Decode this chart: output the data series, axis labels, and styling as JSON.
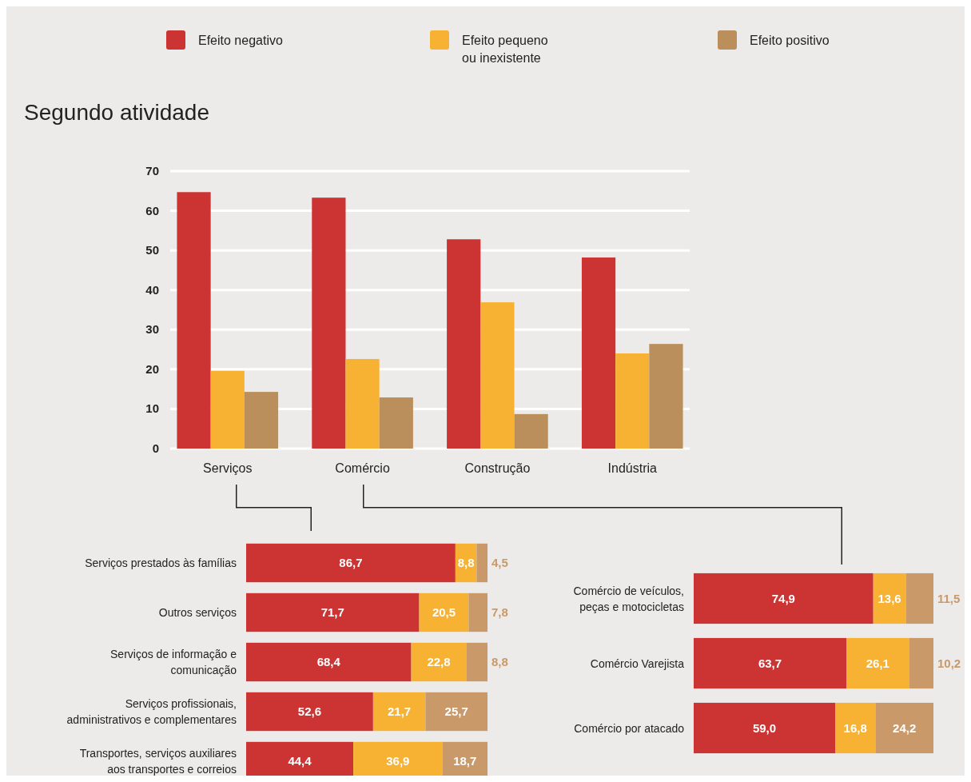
{
  "chart_data": [
    {
      "type": "bar",
      "title": "Segundo atividade",
      "categories": [
        "Serviços",
        "Comércio",
        "Construção",
        "Indústria"
      ],
      "series": [
        {
          "name": "Efeito negativo",
          "color": "#cc3333",
          "values": [
            64.7,
            63.3,
            52.8,
            48.2
          ]
        },
        {
          "name": "Efeito pequeno ou inexistente",
          "color": "#f7b133",
          "values": [
            19.6,
            22.6,
            36.9,
            24.0
          ]
        },
        {
          "name": "Efeito positivo",
          "color": "#bb8f5c",
          "values": [
            14.3,
            12.9,
            8.7,
            26.4
          ]
        }
      ],
      "ylim": [
        0,
        70
      ],
      "yticks": [
        0,
        10,
        20,
        30,
        40,
        50,
        60,
        70
      ],
      "grid": "y",
      "legend": "top"
    },
    {
      "type": "bar",
      "orientation": "horizontal",
      "stacked": true,
      "categories": [
        "Serviços prestados às famílias",
        "Outros serviços",
        "Serviços de informação e comunicação",
        "Serviços profissionais, administrativos e complementares",
        "Transportes, serviços auxiliares aos transportes e correios"
      ],
      "series": [
        {
          "color": "#cc3333",
          "values": [
            86.7,
            71.7,
            68.4,
            52.6,
            44.4
          ],
          "value_labels": [
            "86,7",
            "71,7",
            "68,4",
            "52,6",
            "44,4"
          ]
        },
        {
          "color": "#f7b133",
          "values": [
            8.8,
            20.5,
            22.8,
            21.7,
            36.9
          ],
          "value_labels": [
            "8,8",
            "20,5",
            "22,8",
            "21,7",
            "36,9"
          ]
        },
        {
          "color": "#c9996a",
          "values": [
            4.5,
            7.8,
            8.8,
            25.7,
            18.7
          ],
          "value_labels": [
            "4,5",
            "7,8",
            "8,8",
            "25,7",
            "18,7"
          ]
        }
      ]
    },
    {
      "type": "bar",
      "orientation": "horizontal",
      "stacked": true,
      "categories": [
        "Comércio de veículos, peças e motocicletas",
        "Comércio Varejista",
        "Comércio por atacado"
      ],
      "series": [
        {
          "color": "#cc3333",
          "values": [
            74.9,
            63.7,
            59.0
          ],
          "value_labels": [
            "74,9",
            "63,7",
            "59,0"
          ]
        },
        {
          "color": "#f7b133",
          "values": [
            13.6,
            26.1,
            16.8
          ],
          "value_labels": [
            "13,6",
            "26,1",
            "16,8"
          ]
        },
        {
          "color": "#c9996a",
          "values": [
            11.5,
            10.2,
            24.2
          ],
          "value_labels": [
            "11,5",
            "10,2",
            "24,2"
          ]
        }
      ]
    }
  ]
}
